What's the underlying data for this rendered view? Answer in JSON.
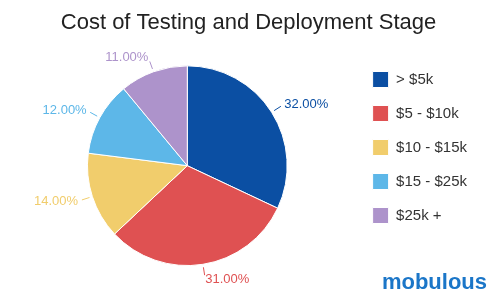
{
  "chart_data": {
    "type": "pie",
    "title": "Cost of Testing and Deployment Stage",
    "categories": [
      "> $5k",
      "$5 - $10k",
      "$10 - $15k",
      "$15 - $25k",
      "$25k +"
    ],
    "values": [
      32,
      31,
      14,
      12,
      11
    ],
    "value_labels": [
      "32.00%",
      "31.00%",
      "14.00%",
      "12.00%",
      "11.00%"
    ],
    "colors": [
      "#0b4fa3",
      "#df5152",
      "#f1cd6c",
      "#5db7e8",
      "#ad93cb"
    ],
    "legend": "right",
    "data_labels": true,
    "annotations": [
      "mobulous"
    ]
  }
}
